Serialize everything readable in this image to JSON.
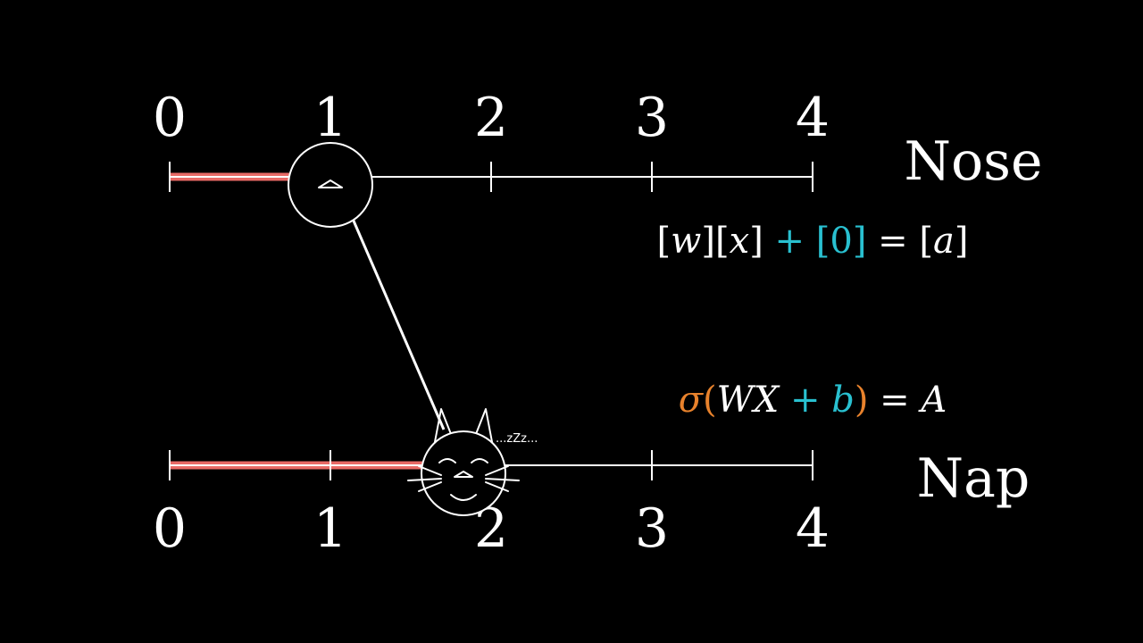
{
  "colors": {
    "background": "#000000",
    "foreground": "#ffffff",
    "highlight": "#e86a66",
    "highlight_core": "#ffd7d4",
    "teal": "#29c0d0",
    "orange": "#e8822c"
  },
  "top_axis": {
    "name": "Nose",
    "ticks": [
      "0",
      "1",
      "2",
      "3",
      "4"
    ],
    "marker_value": 1
  },
  "bottom_axis": {
    "name": "Nap",
    "ticks": [
      "0",
      "1",
      "2",
      "3",
      "4"
    ],
    "marker_value": 1.75
  },
  "equation_1": {
    "w": "w",
    "x": "x",
    "plus": "+",
    "b": "0",
    "equals": "=",
    "a": "a"
  },
  "equation_2": {
    "sigma": "σ",
    "open": "(",
    "wx": "WX",
    "plus": "+",
    "b": "b",
    "close": ")",
    "equals": "=",
    "a": "A"
  },
  "icons": {
    "top_marker": "nose-icon",
    "bottom_marker": "sleeping-cat-icon"
  },
  "sleep_text": "...zZz..."
}
